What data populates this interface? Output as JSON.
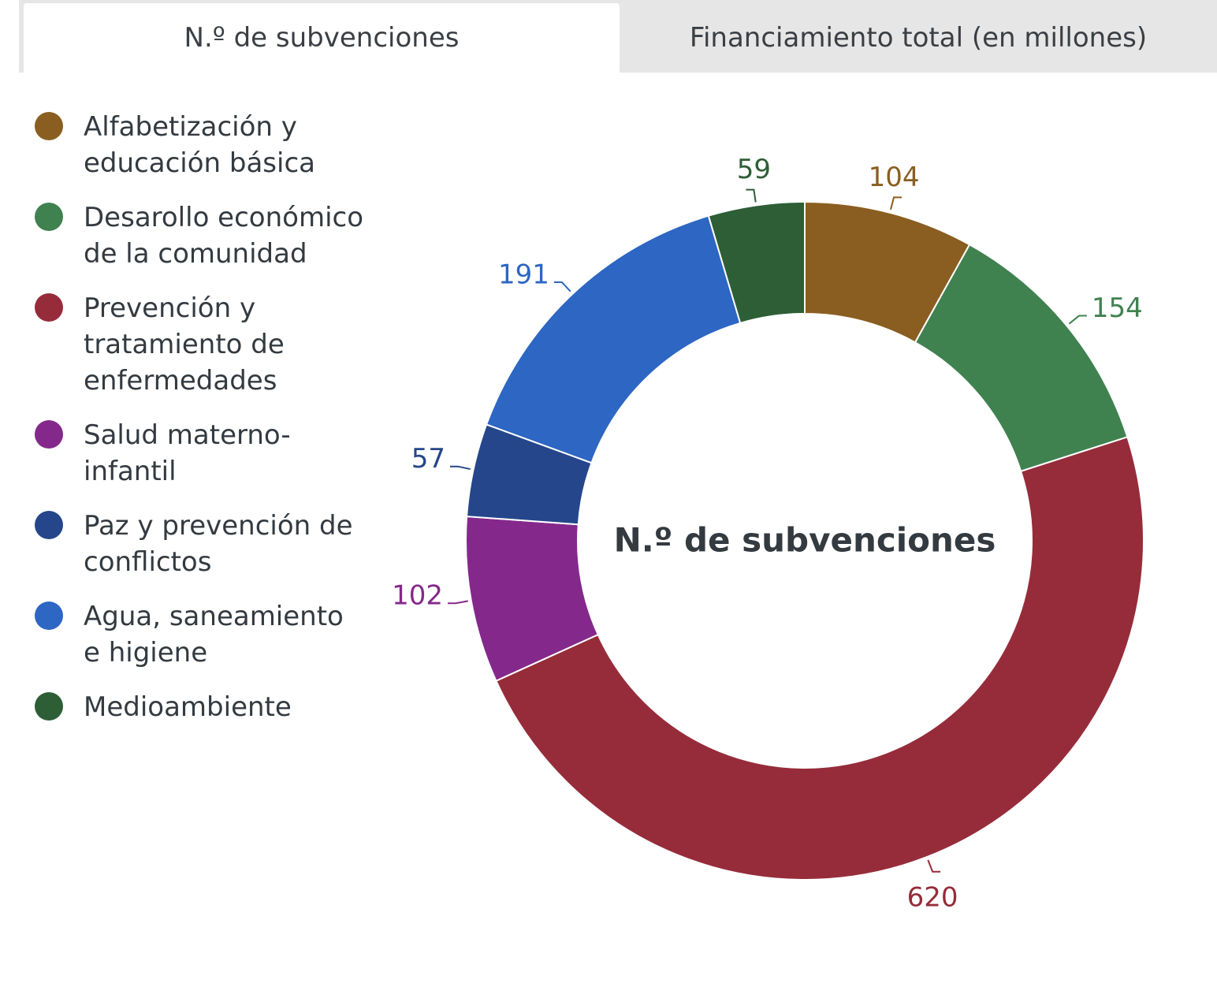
{
  "tabs": [
    {
      "label": "N.º de subvenciones",
      "active": true
    },
    {
      "label": "Financiamiento total (en millones)",
      "active": false
    }
  ],
  "chart_data": {
    "type": "pie",
    "subtype": "donut",
    "center_label": "N.º de subvenciones",
    "legend_position": "left",
    "series": [
      {
        "name": "Alfabetización y educación básica",
        "value": 104,
        "label": "104",
        "color": "#8a5e20"
      },
      {
        "name": "Desarollo económico de la comunidad",
        "value": 154,
        "label": "154",
        "color": "#408150"
      },
      {
        "name": "Prevención y tratamiento de enfermedades",
        "value": 620,
        "label": "620",
        "color": "#962c3a"
      },
      {
        "name": "Salud materno-infantil",
        "value": 102,
        "label": "102",
        "color": "#84298b"
      },
      {
        "name": "Paz y prevención de conflictos",
        "value": 57,
        "label": "57",
        "color": "#25468a"
      },
      {
        "name": "Agua, saneamiento e higiene",
        "value": 191,
        "label": "191",
        "color": "#2d66c3"
      },
      {
        "name": "Medioambiente",
        "value": 59,
        "label": "59",
        "color": "#2d5e36"
      }
    ]
  }
}
